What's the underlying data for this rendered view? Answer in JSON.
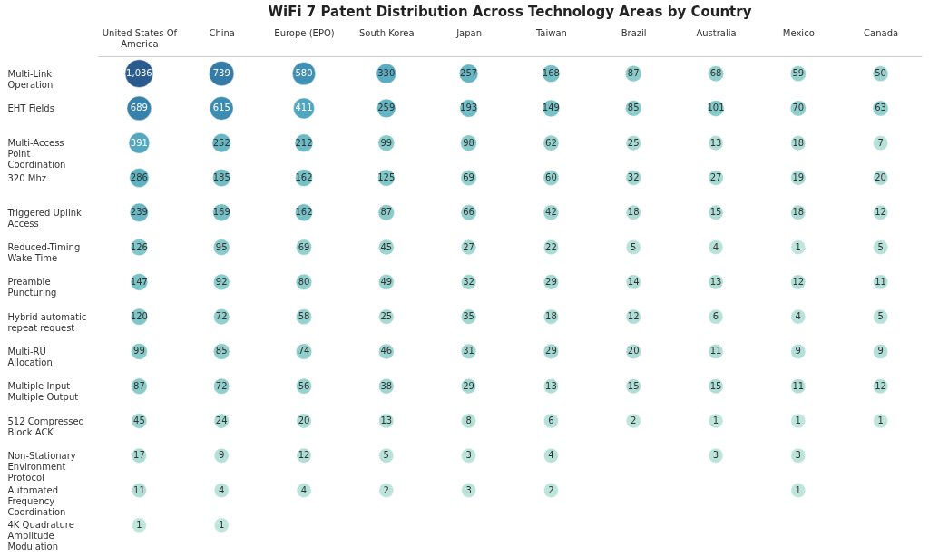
{
  "chart_data": {
    "type": "heatmap",
    "title": "WiFi 7 Patent Distribution Across Technology Areas by Country",
    "categories": [
      "United States Of America",
      "China",
      "Europe (EPO)",
      "South Korea",
      "Japan",
      "Taiwan",
      "Brazil",
      "Australia",
      "Mexico",
      "Canada"
    ],
    "y_categories": [
      "Multi-Link Operation",
      "EHT Fields",
      "Multi-Access Point Coordination",
      "320 Mhz",
      "Triggered Uplink Access",
      "Reduced-Timing Wake Time",
      "Preamble Puncturing",
      "Hybrid automatic repeat request",
      "Multi-RU Allocation",
      "Multiple Input Multiple Output",
      "512 Compressed Block ACK",
      "Non-Stationary Environment Protocol",
      "Automated Frequency Coordination",
      "4K Quadrature Amplitude Modulation"
    ],
    "cells": [
      [
        1036,
        739,
        580,
        330,
        257,
        168,
        87,
        68,
        59,
        50
      ],
      [
        689,
        615,
        411,
        259,
        193,
        149,
        85,
        101,
        70,
        63
      ],
      [
        391,
        252,
        212,
        99,
        98,
        62,
        25,
        13,
        18,
        7
      ],
      [
        286,
        185,
        162,
        125,
        69,
        60,
        32,
        27,
        19,
        20
      ],
      [
        239,
        169,
        162,
        87,
        66,
        42,
        18,
        15,
        18,
        12
      ],
      [
        126,
        95,
        69,
        45,
        27,
        22,
        5,
        4,
        1,
        5
      ],
      [
        147,
        92,
        80,
        49,
        32,
        29,
        14,
        13,
        12,
        11
      ],
      [
        120,
        72,
        58,
        25,
        35,
        18,
        12,
        6,
        4,
        5
      ],
      [
        99,
        85,
        74,
        46,
        31,
        29,
        20,
        11,
        9,
        9
      ],
      [
        87,
        72,
        56,
        38,
        29,
        13,
        15,
        15,
        11,
        12
      ],
      [
        45,
        24,
        20,
        13,
        8,
        6,
        2,
        1,
        1,
        1
      ],
      [
        17,
        9,
        12,
        5,
        3,
        4,
        null,
        3,
        3,
        null
      ],
      [
        11,
        4,
        4,
        2,
        3,
        2,
        null,
        null,
        1,
        null
      ],
      [
        1,
        1,
        null,
        null,
        null,
        null,
        null,
        null,
        null,
        null
      ]
    ],
    "cell_labels": [
      [
        "1,036",
        "739",
        "580",
        "330",
        "257",
        "168",
        "87",
        "68",
        "59",
        "50"
      ],
      [
        "689",
        "615",
        "411",
        "259",
        "193",
        "149",
        "85",
        "101",
        "70",
        "63"
      ],
      [
        "391",
        "252",
        "212",
        "99",
        "98",
        "62",
        "25",
        "13",
        "18",
        "7"
      ],
      [
        "286",
        "185",
        "162",
        "125",
        "69",
        "60",
        "32",
        "27",
        "19",
        "20"
      ],
      [
        "239",
        "169",
        "162",
        "87",
        "66",
        "42",
        "18",
        "15",
        "18",
        "12"
      ],
      [
        "126",
        "95",
        "69",
        "45",
        "27",
        "22",
        "5",
        "4",
        "1",
        "5"
      ],
      [
        "147",
        "92",
        "80",
        "49",
        "32",
        "29",
        "14",
        "13",
        "12",
        "11"
      ],
      [
        "120",
        "72",
        "58",
        "25",
        "35",
        "18",
        "12",
        "6",
        "4",
        "5"
      ],
      [
        "99",
        "85",
        "74",
        "46",
        "31",
        "29",
        "20",
        "11",
        "9",
        "9"
      ],
      [
        "87",
        "72",
        "56",
        "38",
        "29",
        "13",
        "15",
        "15",
        "11",
        "12"
      ],
      [
        "45",
        "24",
        "20",
        "13",
        "8",
        "6",
        "2",
        "1",
        "1",
        "1"
      ],
      [
        "17",
        "9",
        "12",
        "5",
        "3",
        "4",
        null,
        "3",
        "3",
        null
      ],
      [
        "11",
        "4",
        "4",
        "2",
        "3",
        "2",
        null,
        null,
        "1",
        null
      ],
      [
        "1",
        "1",
        null,
        null,
        null,
        null,
        null,
        null,
        null,
        null
      ]
    ],
    "data_labels": true,
    "grid": false,
    "legend": false
  }
}
